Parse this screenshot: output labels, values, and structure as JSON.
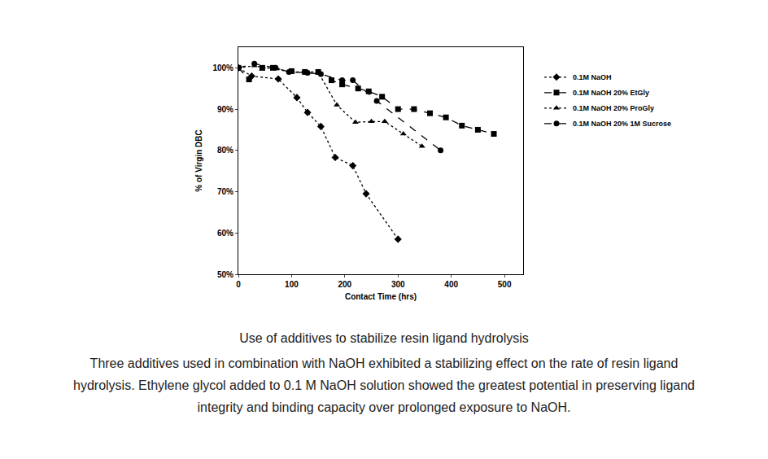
{
  "chart_data": {
    "type": "line",
    "x_label": "Contact Time (hrs)",
    "y_label": "% of Virgin DBC",
    "annotations": [
      "Use of additives to stabilize resin ligand hydrolysis",
      "Three additives used in combination with NaOH exhibited a stabilizing effect on the rate of resin ligand hydrolysis. Ethylene glycol added to 0.1 M NaOH solution showed the greatest potential in preserving ligand integrity and binding capacity over prolonged exposure to NaOH."
    ],
    "xlim": [
      0,
      535
    ],
    "xticks": [
      0,
      100,
      200,
      300,
      400,
      500
    ],
    "ylim": [
      50,
      105
    ],
    "yticks": [
      {
        "value": 50,
        "label": "50%"
      },
      {
        "value": 60,
        "label": "60%"
      },
      {
        "value": 70,
        "label": "70%"
      },
      {
        "value": 80,
        "label": "80%"
      },
      {
        "value": 90,
        "label": "90%"
      },
      {
        "value": 100,
        "label": "100%"
      }
    ],
    "grid": false,
    "legend": "right",
    "series": [
      {
        "name": "0.1M NaOH",
        "color": "#000000",
        "marker": "diamond",
        "line_style": "dot",
        "x": [
          0,
          25,
          75,
          110,
          130,
          155,
          182,
          215,
          240,
          300
        ],
        "values": [
          100,
          98,
          97.3,
          92.8,
          89.2,
          85.8,
          78.3,
          76.3,
          69.5,
          58.5
        ]
      },
      {
        "name": "0.1M NaOH 20% EtGly",
        "color": "#000000",
        "marker": "square",
        "line_style": "dash",
        "x": [
          0,
          20,
          45,
          65,
          100,
          125,
          150,
          175,
          195,
          225,
          245,
          270,
          300,
          330,
          360,
          390,
          420,
          450,
          480
        ],
        "values": [
          100,
          97.2,
          100,
          100,
          99.2,
          99,
          99,
          97,
          96,
          95,
          94.3,
          93,
          90,
          90,
          89,
          88,
          86,
          85,
          84
        ]
      },
      {
        "name": "0.1M NaOH 20% ProGly",
        "color": "#000000",
        "marker": "triangle-up",
        "line_style": "dot",
        "x": [
          0,
          30,
          100,
          150,
          185,
          220,
          250,
          275,
          310,
          345
        ],
        "values": [
          100,
          100.5,
          99,
          99,
          91,
          86.8,
          87,
          87,
          84,
          81
        ]
      },
      {
        "name": "0.1M NaOH 20% 1M Sucrose",
        "color": "#000000",
        "marker": "circle",
        "line_style": "dash",
        "x": [
          0,
          30,
          70,
          95,
          130,
          155,
          195,
          215,
          260,
          380
        ],
        "values": [
          100,
          101,
          100,
          99,
          98.8,
          98.5,
          97,
          97,
          92,
          80
        ]
      }
    ]
  }
}
